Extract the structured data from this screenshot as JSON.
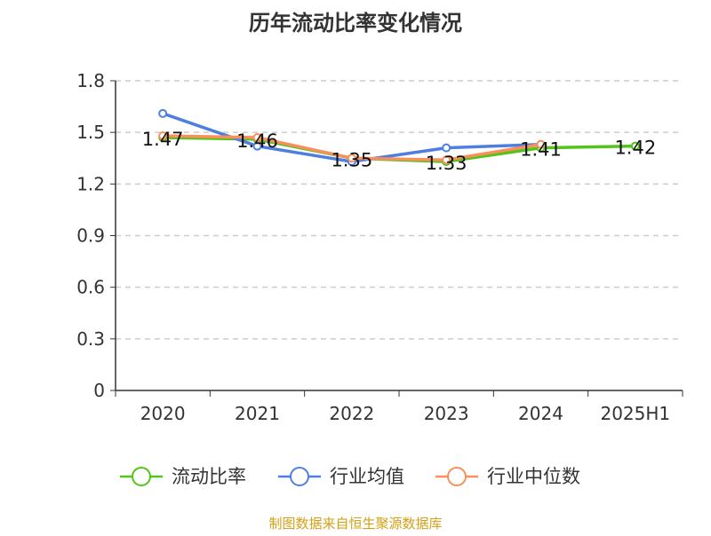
{
  "chart_data": {
    "type": "line",
    "title": "历年流动比率变化情况",
    "categories": [
      "2020",
      "2021",
      "2022",
      "2023",
      "2024",
      "2025H1"
    ],
    "ylim": [
      0,
      1.8
    ],
    "yticks": [
      "0",
      "0.3",
      "0.6",
      "0.9",
      "1.2",
      "1.5",
      "1.8"
    ],
    "grid": true,
    "legend_position": "bottom",
    "series": [
      {
        "name": "流动比率",
        "color": "#52c41a",
        "values": [
          1.47,
          1.46,
          1.35,
          1.33,
          1.41,
          1.42
        ],
        "labels": [
          "1.47",
          "1.46",
          "1.35",
          "1.33",
          "1.41",
          "1.42"
        ]
      },
      {
        "name": "行业均值",
        "color": "#4e7fe0",
        "values": [
          1.61,
          1.42,
          1.33,
          1.41,
          1.43,
          null
        ]
      },
      {
        "name": "行业中位数",
        "color": "#f98f5a",
        "values": [
          1.48,
          1.47,
          1.35,
          1.34,
          1.43,
          null
        ]
      }
    ]
  },
  "source": "制图数据来自恒生聚源数据库",
  "source_color": "#d4a017"
}
